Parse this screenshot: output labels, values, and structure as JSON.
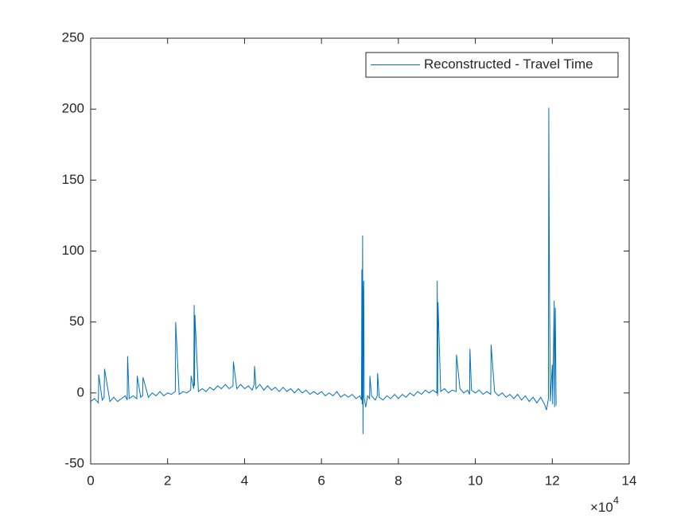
{
  "chart_data": {
    "type": "line",
    "x_multiplier": "×10",
    "x_multiplier_exponent": "4",
    "xlim": [
      0,
      14
    ],
    "xticks": [
      0,
      2,
      4,
      6,
      8,
      10,
      12,
      14
    ],
    "ylim": [
      -50,
      250
    ],
    "yticks": [
      -50,
      0,
      50,
      100,
      150,
      200,
      250
    ],
    "grid": false,
    "legend_position": "northeast",
    "x": [
      0,
      0.1,
      0.2,
      0.21,
      0.3,
      0.35,
      0.36,
      0.5,
      0.6,
      0.7,
      0.8,
      0.9,
      0.95,
      0.96,
      1.0,
      1.1,
      1.2,
      1.21,
      1.3,
      1.35,
      1.36,
      1.5,
      1.6,
      1.7,
      1.8,
      1.9,
      2.0,
      2.1,
      2.2,
      2.21,
      2.3,
      2.4,
      2.5,
      2.6,
      2.61,
      2.68,
      2.69,
      2.7,
      2.71,
      2.8,
      2.9,
      3.0,
      3.1,
      3.2,
      3.3,
      3.4,
      3.5,
      3.6,
      3.7,
      3.71,
      3.8,
      3.9,
      4.0,
      4.1,
      4.2,
      4.25,
      4.26,
      4.3,
      4.4,
      4.5,
      4.6,
      4.7,
      4.8,
      4.9,
      5.0,
      5.1,
      5.2,
      5.3,
      5.4,
      5.5,
      5.6,
      5.7,
      5.8,
      5.9,
      6.0,
      6.1,
      6.2,
      6.3,
      6.4,
      6.5,
      6.6,
      6.7,
      6.8,
      6.9,
      7.0,
      7.04,
      7.05,
      7.06,
      7.07,
      7.08,
      7.09,
      7.1,
      7.11,
      7.15,
      7.2,
      7.25,
      7.26,
      7.3,
      7.4,
      7.45,
      7.46,
      7.5,
      7.6,
      7.7,
      7.8,
      7.9,
      8.0,
      8.1,
      8.2,
      8.3,
      8.4,
      8.5,
      8.6,
      8.7,
      8.8,
      8.9,
      9.0,
      9.01,
      9.02,
      9.03,
      9.1,
      9.2,
      9.3,
      9.4,
      9.5,
      9.51,
      9.6,
      9.7,
      9.8,
      9.85,
      9.86,
      9.9,
      10.0,
      10.1,
      10.2,
      10.3,
      10.4,
      10.41,
      10.5,
      10.6,
      10.7,
      10.8,
      10.9,
      11.0,
      11.1,
      11.2,
      11.3,
      11.4,
      11.5,
      11.6,
      11.7,
      11.8,
      11.85,
      11.9,
      11.91,
      11.92,
      11.93,
      11.95,
      12.0,
      12.01,
      12.05,
      12.06,
      12.08,
      12.1
    ],
    "series": [
      {
        "name": "Reconstructed - Travel Time",
        "color": "#0072bd",
        "values": [
          -6,
          -4,
          -7,
          13,
          -5,
          -3,
          17,
          -6,
          -3,
          -6,
          -4,
          -2,
          -5,
          26,
          -4,
          -2,
          -4,
          12,
          -3,
          -2,
          11,
          -3,
          0,
          -2,
          1,
          -2,
          0,
          -1,
          1,
          50,
          -1,
          1,
          0,
          2,
          12,
          3,
          62,
          5,
          55,
          1,
          3,
          1,
          4,
          2,
          5,
          3,
          6,
          3,
          5,
          22,
          3,
          6,
          3,
          5,
          2,
          6,
          19,
          3,
          6,
          2,
          5,
          2,
          4,
          1,
          4,
          1,
          3,
          0,
          3,
          0,
          2,
          -1,
          1,
          -1,
          1,
          -2,
          0,
          -2,
          1,
          -3,
          -1,
          -3,
          -1,
          -4,
          -2,
          -5,
          87,
          -8,
          111,
          -29,
          69,
          79,
          -3,
          -10,
          -2,
          -4,
          12,
          -2,
          -5,
          -2,
          14,
          -3,
          -5,
          -2,
          -4,
          -1,
          -4,
          -1,
          -3,
          0,
          -2,
          1,
          -1,
          2,
          0,
          2,
          0,
          79,
          -2,
          64,
          1,
          3,
          0,
          2,
          1,
          27,
          3,
          0,
          2,
          -1,
          31,
          2,
          0,
          2,
          -1,
          1,
          -1,
          34,
          1,
          -2,
          0,
          -3,
          -1,
          -4,
          -1,
          -5,
          -2,
          -6,
          -3,
          -7,
          -3,
          -8,
          -12,
          -4,
          201,
          123,
          67,
          -6,
          20,
          -8,
          65,
          -10,
          60,
          -9
        ]
      }
    ]
  }
}
